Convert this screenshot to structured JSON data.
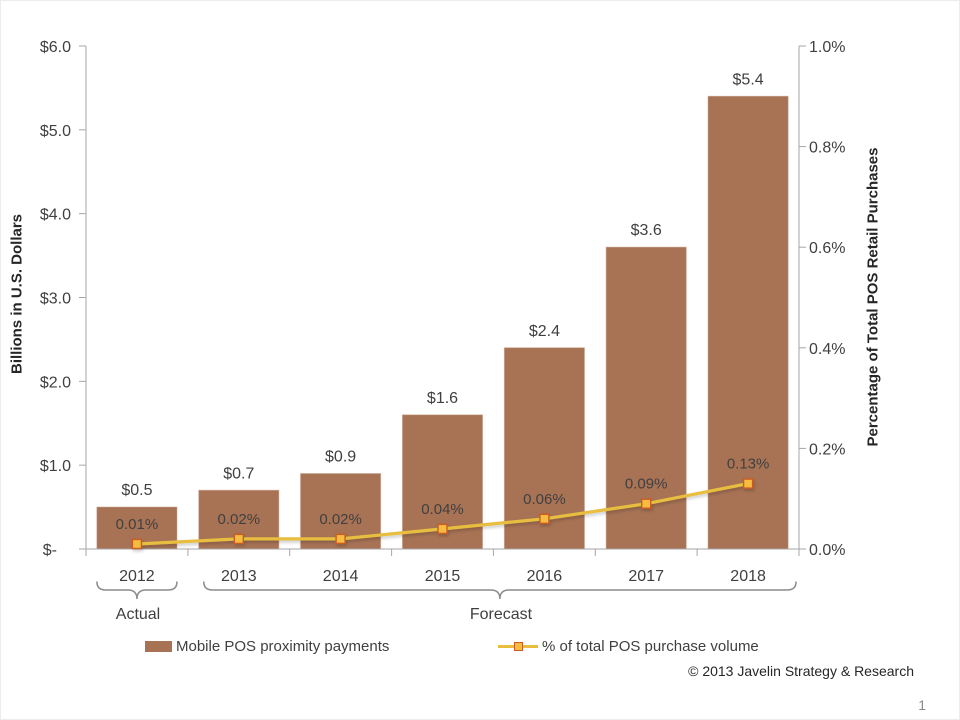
{
  "slide": {
    "copyright": "© 2013 Javelin Strategy & Research",
    "page_number": "1"
  },
  "chart_data": {
    "type": "bar",
    "subtype": "bar-line-combo",
    "categories": [
      "2012",
      "2013",
      "2014",
      "2015",
      "2016",
      "2017",
      "2018"
    ],
    "series": [
      {
        "name": "Mobile POS proximity payments",
        "type": "bar",
        "axis": "left",
        "values": [
          0.5,
          0.7,
          0.9,
          1.6,
          2.4,
          3.6,
          5.4
        ],
        "data_labels": [
          "$0.5",
          "$0.7",
          "$0.9",
          "$1.6",
          "$2.4",
          "$3.6",
          "$5.4"
        ],
        "color": "#A87355",
        "border_color": "#BA8A6D"
      },
      {
        "name": "% of total POS purchase volume",
        "type": "line",
        "axis": "right",
        "values": [
          0.01,
          0.02,
          0.02,
          0.04,
          0.06,
          0.09,
          0.13
        ],
        "data_labels": [
          "0.01%",
          "0.02%",
          "0.02%",
          "0.04%",
          "0.06%",
          "0.09%",
          "0.13%"
        ],
        "data_label_color": "#FFFFFF",
        "color": "#E8BE3F",
        "marker_fill": "#F4BD41",
        "marker_border": "#CC5B22"
      }
    ],
    "left_axis": {
      "title": "Billions in U.S. Dollars",
      "tick_labels": [
        "$6.0",
        "$5.0",
        "$4.0",
        "$3.0",
        "$2.0",
        "$1.0",
        "$-"
      ],
      "tick_values": [
        6,
        5,
        4,
        3,
        2,
        1,
        0
      ],
      "min": 0,
      "max": 6
    },
    "right_axis": {
      "title": "Percentage of Total POS Retail Purchases",
      "tick_labels": [
        "1.0%",
        "0.8%",
        "0.6%",
        "0.4%",
        "0.2%",
        "0.0%"
      ],
      "tick_values": [
        1.0,
        0.8,
        0.6,
        0.4,
        0.2,
        0.0
      ],
      "min": 0,
      "max": 1.0
    },
    "annotations": {
      "actual_label": "Actual",
      "forecast_label": "Forecast"
    },
    "legend_position": "bottom",
    "grid": false,
    "axis_line_color": "#A6A6A6",
    "brace_color": "#8C8C8C"
  }
}
